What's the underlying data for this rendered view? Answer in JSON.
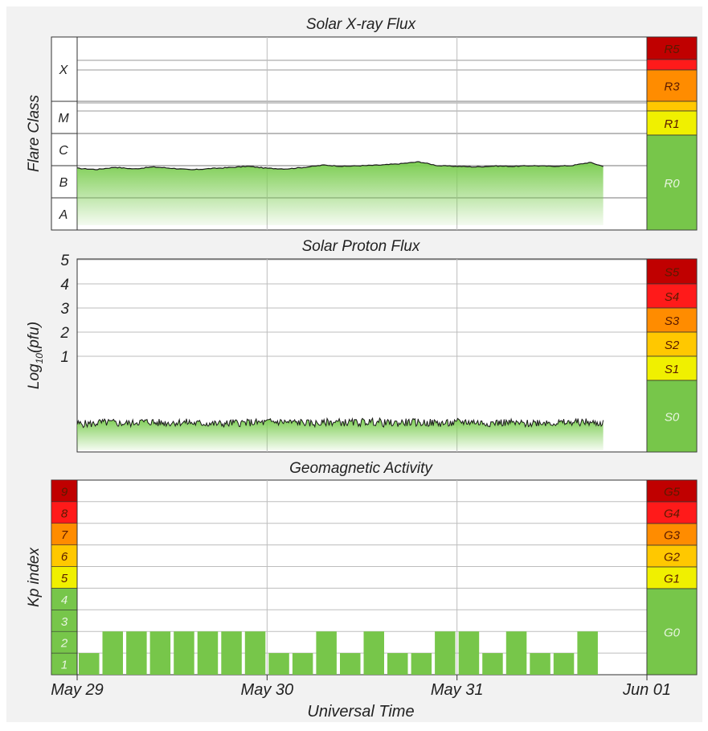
{
  "colors": {
    "panel_bg": "#f2f2f2",
    "plot_bg": "#ffffff",
    "grid": "#bdbdbd",
    "line": "#1a1a1a",
    "fill": "#7ccd52",
    "scale_dark_red": "#c00000",
    "scale_red": "#ff1a1a",
    "scale_orange": "#ff8c00",
    "scale_gold": "#ffc800",
    "scale_yellow": "#f0f000",
    "scale_green": "#77c64a",
    "scale_text_dark": "#5a1a00",
    "scale_text_light": "#e8f5e0"
  },
  "xaxis": {
    "label": "Universal Time",
    "ticks": [
      "May 29",
      "May 30",
      "May 31",
      "Jun 01"
    ]
  },
  "chart_data": [
    {
      "type": "area",
      "title": "Solar X-ray Flux",
      "ylabel": "Flare Class",
      "y_scale": "log",
      "class_labels": [
        "X",
        "M",
        "C",
        "B",
        "A"
      ],
      "x_range_days": [
        0,
        3
      ],
      "data_end_day": 2.77,
      "series": [
        {
          "name": "",
          "x_days": [
            0,
            0.1,
            0.2,
            0.3,
            0.4,
            0.5,
            0.6,
            0.7,
            0.8,
            0.9,
            1.0,
            1.1,
            1.2,
            1.3,
            1.4,
            1.5,
            1.6,
            1.7,
            1.8,
            1.9,
            2.0,
            2.1,
            2.2,
            2.3,
            2.4,
            2.5,
            2.6,
            2.7,
            2.77
          ],
          "y_log_flux": [
            -7.08,
            -7.12,
            -7.05,
            -7.1,
            -7.04,
            -7.08,
            -7.13,
            -7.09,
            -7.06,
            -7.02,
            -7.08,
            -7.1,
            -7.05,
            -6.98,
            -7.02,
            -7.0,
            -6.98,
            -6.94,
            -6.88,
            -7.0,
            -7.02,
            -7.04,
            -7.01,
            -7.02,
            -7.0,
            -7.02,
            -7.0,
            -6.9,
            -7.02
          ]
        }
      ],
      "scale": [
        {
          "label": "R5",
          "color": "#c00000"
        },
        {
          "label": "",
          "color": "#ff1a1a"
        },
        {
          "label": "R3",
          "color": "#ff8c00"
        },
        {
          "label": "",
          "color": "#ffc800"
        },
        {
          "label": "R1",
          "color": "#f0f000"
        },
        {
          "label": "R0",
          "color": "#77c64a"
        }
      ]
    },
    {
      "type": "area",
      "title": "Solar Proton Flux",
      "ylabel": "Log10(pfu)",
      "ylabel_main": "Log",
      "ylabel_sub": "10",
      "ylabel_end": "(pfu)",
      "y_ticks": [
        "1",
        "2",
        "3",
        "4",
        "5"
      ],
      "x_range_days": [
        0,
        3
      ],
      "data_end_day": 2.77,
      "series": [
        {
          "name": "",
          "x_days": [
            0,
            0.1,
            0.2,
            0.3,
            0.4,
            0.5,
            0.6,
            0.7,
            0.8,
            0.9,
            1.0,
            1.1,
            1.2,
            1.3,
            1.4,
            1.5,
            1.6,
            1.7,
            1.8,
            1.9,
            2.0,
            2.1,
            2.2,
            2.3,
            2.4,
            2.5,
            2.6,
            2.7,
            2.77
          ],
          "y_log_pfu": [
            -1.8,
            -1.75,
            -1.78,
            -1.72,
            -1.76,
            -1.74,
            -1.78,
            -1.8,
            -1.76,
            -1.75,
            -1.72,
            -1.74,
            -1.78,
            -1.73,
            -1.75,
            -1.72,
            -1.77,
            -1.74,
            -1.76,
            -1.78,
            -1.72,
            -1.76,
            -1.75,
            -1.79,
            -1.74,
            -1.76,
            -1.73,
            -1.77,
            -1.78
          ]
        }
      ],
      "scale": [
        {
          "label": "S5",
          "color": "#c00000"
        },
        {
          "label": "S4",
          "color": "#ff1a1a"
        },
        {
          "label": "S3",
          "color": "#ff8c00"
        },
        {
          "label": "S2",
          "color": "#ffc800"
        },
        {
          "label": "S1",
          "color": "#f0f000"
        },
        {
          "label": "S0",
          "color": "#77c64a"
        }
      ]
    },
    {
      "type": "bar",
      "title": "Geomagnetic Activity",
      "ylabel": "Kp index",
      "y_ticks": [
        "1",
        "2",
        "3",
        "4",
        "5",
        "6",
        "7",
        "8",
        "9"
      ],
      "ylim": [
        0,
        9
      ],
      "x_range_days": [
        0,
        3
      ],
      "bar_width_days": 0.125,
      "values": [
        1,
        2,
        2,
        2,
        2,
        2,
        2,
        2,
        1,
        1,
        2,
        1,
        2,
        1,
        1,
        2,
        2,
        1,
        2,
        1,
        1,
        2
      ],
      "kp_colors": [
        "#77c64a",
        "#77c64a",
        "#77c64a",
        "#77c64a",
        "#f0f000",
        "#ffc800",
        "#ff8c00",
        "#ff1a1a",
        "#c00000"
      ],
      "scale": [
        {
          "label": "G5",
          "color": "#c00000"
        },
        {
          "label": "G4",
          "color": "#ff1a1a"
        },
        {
          "label": "G3",
          "color": "#ff8c00"
        },
        {
          "label": "G2",
          "color": "#ffc800"
        },
        {
          "label": "G1",
          "color": "#f0f000"
        },
        {
          "label": "G0",
          "color": "#77c64a"
        }
      ]
    }
  ]
}
